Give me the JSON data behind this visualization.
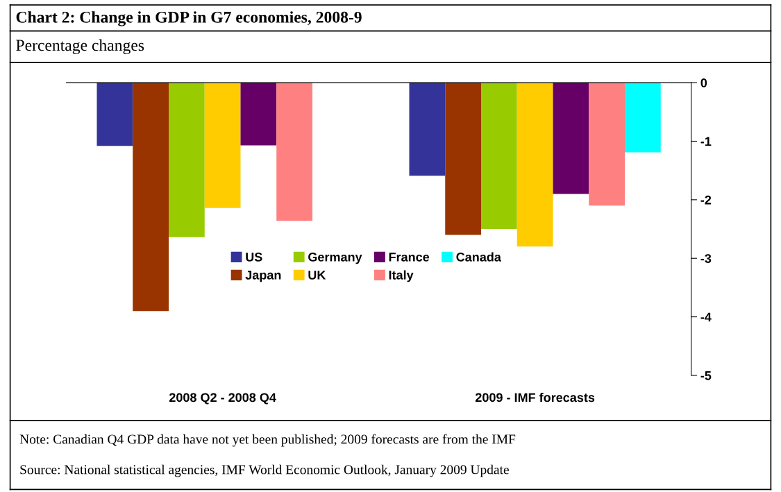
{
  "chart_data": {
    "type": "bar",
    "title": "Chart 2: Change in GDP in G7 economies, 2008-9",
    "subtitle": "Percentage changes",
    "categories": [
      "2008 Q2 - 2008 Q4",
      "2009 - IMF forecasts"
    ],
    "series": [
      {
        "name": "US",
        "color": "#333399",
        "values": [
          -1.08,
          -1.59
        ]
      },
      {
        "name": "Japan",
        "color": "#993300",
        "values": [
          -3.9,
          -2.6
        ]
      },
      {
        "name": "Germany",
        "color": "#99cc00",
        "values": [
          -2.64,
          -2.5
        ]
      },
      {
        "name": "UK",
        "color": "#ffcc00",
        "values": [
          -2.14,
          -2.8
        ]
      },
      {
        "name": "France",
        "color": "#660066",
        "values": [
          -1.07,
          -1.9
        ]
      },
      {
        "name": "Italy",
        "color": "#ff8080",
        "values": [
          -2.36,
          -2.1
        ]
      },
      {
        "name": "Canada",
        "color": "#00ffff",
        "values": [
          null,
          -1.19
        ]
      }
    ],
    "ylim": [
      -5,
      0
    ],
    "yticks": [
      0,
      -1,
      -2,
      -3,
      -4,
      -5
    ],
    "grid": false,
    "legend": "center",
    "annotations": [
      "Note: Canadian Q4 GDP data have not yet been published; 2009 forecasts are from the IMF",
      "Source: National statistical agencies, IMF World Economic Outlook, January 2009 Update"
    ]
  }
}
